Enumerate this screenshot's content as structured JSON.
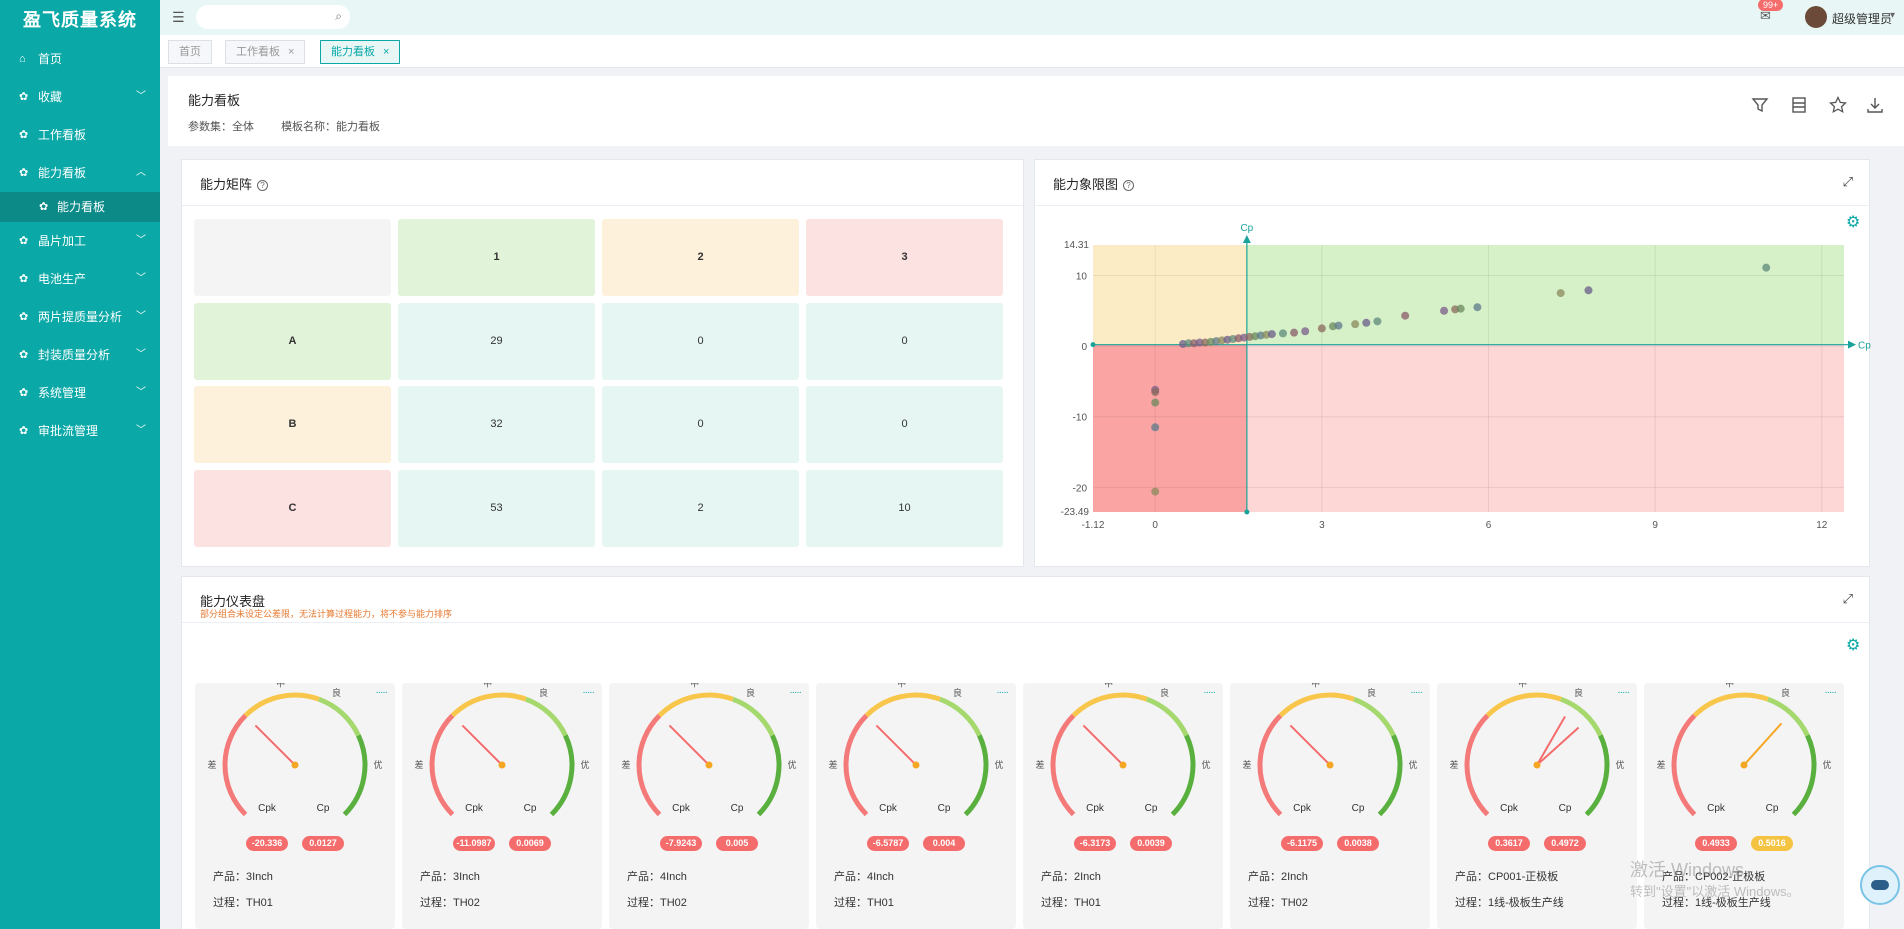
{
  "app": {
    "title": "盈飞质量系统"
  },
  "sidebar": {
    "items": [
      {
        "label": "首页",
        "icon": "home-icon",
        "arrow": ""
      },
      {
        "label": "收藏",
        "icon": "gear-icon",
        "arrow": "down"
      },
      {
        "label": "工作看板",
        "icon": "gear-icon",
        "arrow": ""
      },
      {
        "label": "能力看板",
        "icon": "gear-icon",
        "arrow": "up"
      },
      {
        "label": "能力看板",
        "icon": "gear-icon",
        "arrow": "",
        "sub": true
      },
      {
        "label": "晶片加工",
        "icon": "gear-icon",
        "arrow": "down"
      },
      {
        "label": "电池生产",
        "icon": "gear-icon",
        "arrow": "down"
      },
      {
        "label": "两片提质量分析",
        "icon": "gear-icon",
        "arrow": "down"
      },
      {
        "label": "封装质量分析",
        "icon": "gear-icon",
        "arrow": "down"
      },
      {
        "label": "系统管理",
        "icon": "gear-icon",
        "arrow": "down"
      },
      {
        "label": "审批流管理",
        "icon": "gear-icon",
        "arrow": "down"
      }
    ]
  },
  "header": {
    "search_placeholder": "",
    "badge": "99+",
    "username": "超级管理员"
  },
  "tabs": [
    {
      "label": "首页",
      "closable": false,
      "active": false
    },
    {
      "label": "工作看板",
      "closable": true,
      "active": false
    },
    {
      "label": "能力看板",
      "closable": true,
      "active": true
    }
  ],
  "page": {
    "title": "能力看板",
    "param_label": "参数集：全体",
    "template_label": "模板名称：能力看板"
  },
  "matrix": {
    "title": "能力矩阵",
    "col_headers": [
      "",
      "1",
      "2",
      "3"
    ],
    "rows": [
      {
        "label": "A",
        "values": [
          "29",
          "0",
          "0"
        ]
      },
      {
        "label": "B",
        "values": [
          "32",
          "0",
          "0"
        ]
      },
      {
        "label": "C",
        "values": [
          "53",
          "2",
          "10"
        ]
      }
    ]
  },
  "quadrant": {
    "title": "能力象限图",
    "x_axis_label": "Cpk",
    "y_axis_label": "Cp",
    "x_min_label": "-1.12",
    "y_max_label": "14.31",
    "y_min_label": "-23.49",
    "x_ticks": [
      "0",
      "3",
      "6",
      "9",
      "12"
    ],
    "y_ticks": [
      "10",
      "0",
      "-10",
      "-20"
    ]
  },
  "chart_data": {
    "type": "scatter",
    "title": "能力象限图",
    "xlabel": "Cpk",
    "ylabel": "Cp",
    "xlim": [
      -1.12,
      12.4
    ],
    "ylim": [
      -23.49,
      14.31
    ],
    "grid": true,
    "points": [
      [
        0,
        -6.2
      ],
      [
        0,
        -6.5
      ],
      [
        0,
        -8.0
      ],
      [
        0,
        -11.5
      ],
      [
        0,
        -20.6
      ],
      [
        0.5,
        0.3
      ],
      [
        0.6,
        0.4
      ],
      [
        0.7,
        0.4
      ],
      [
        0.8,
        0.5
      ],
      [
        0.9,
        0.5
      ],
      [
        1.0,
        0.6
      ],
      [
        1.1,
        0.7
      ],
      [
        1.2,
        0.8
      ],
      [
        1.3,
        0.9
      ],
      [
        1.4,
        1.0
      ],
      [
        1.5,
        1.1
      ],
      [
        1.6,
        1.2
      ],
      [
        1.7,
        1.3
      ],
      [
        1.8,
        1.4
      ],
      [
        1.9,
        1.5
      ],
      [
        2.0,
        1.6
      ],
      [
        2.1,
        1.7
      ],
      [
        2.3,
        1.8
      ],
      [
        2.5,
        1.9
      ],
      [
        2.7,
        2.1
      ],
      [
        3.0,
        2.5
      ],
      [
        3.2,
        2.8
      ],
      [
        3.3,
        2.9
      ],
      [
        3.6,
        3.1
      ],
      [
        3.8,
        3.3
      ],
      [
        4.0,
        3.5
      ],
      [
        4.5,
        4.3
      ],
      [
        5.2,
        5.0
      ],
      [
        5.4,
        5.2
      ],
      [
        5.5,
        5.3
      ],
      [
        5.8,
        5.5
      ],
      [
        7.3,
        7.5
      ],
      [
        7.8,
        7.9
      ],
      [
        11.0,
        11.1
      ]
    ],
    "point_colors": [
      "#7a5c8a",
      "#8a6a5c",
      "#6a8a5c",
      "#5c7a8a",
      "#8a8a5c",
      "#6a5c8a",
      "#5c8a7a",
      "#8a5c6a"
    ]
  },
  "gauges_panel": {
    "title": "能力仪表盘",
    "warning": "部分组合未设定公差限，无法计算过程能力，将不参与能力排序"
  },
  "gauges": [
    {
      "cpk": "-20.336",
      "cp": "0.0127",
      "cpk_color": "#f56c6c",
      "cp_color": "#f56c6c",
      "product": "产品：3Inch",
      "process": "过程：TH01",
      "needle_deg": 225,
      "needle_color": "#f56c6c"
    },
    {
      "cpk": "-11.0987",
      "cp": "0.0069",
      "cpk_color": "#f56c6c",
      "cp_color": "#f56c6c",
      "product": "产品：3Inch",
      "process": "过程：TH02",
      "needle_deg": 225,
      "needle_color": "#f56c6c"
    },
    {
      "cpk": "-7.9243",
      "cp": "0.005",
      "cpk_color": "#f56c6c",
      "cp_color": "#f56c6c",
      "product": "产品：4Inch",
      "process": "过程：TH02",
      "needle_deg": 225,
      "needle_color": "#f56c6c"
    },
    {
      "cpk": "-6.5787",
      "cp": "0.004",
      "cpk_color": "#f56c6c",
      "cp_color": "#f56c6c",
      "product": "产品：4Inch",
      "process": "过程：TH01",
      "needle_deg": 225,
      "needle_color": "#f56c6c"
    },
    {
      "cpk": "-6.3173",
      "cp": "0.0039",
      "cpk_color": "#f56c6c",
      "cp_color": "#f56c6c",
      "product": "产品：2Inch",
      "process": "过程：TH01",
      "needle_deg": 225,
      "needle_color": "#f56c6c"
    },
    {
      "cpk": "-6.1175",
      "cp": "0.0038",
      "cpk_color": "#f56c6c",
      "cp_color": "#f56c6c",
      "product": "产品：2Inch",
      "process": "过程：TH02",
      "needle_deg": 225,
      "needle_color": "#f56c6c"
    },
    {
      "cpk": "0.3617",
      "cp": "0.4972",
      "cpk_color": "#f56c6c",
      "cp_color": "#f56c6c",
      "product": "产品：CP001-正极板",
      "process": "过程：1线-极板生产线",
      "needle_deg": 300,
      "needle_color": "#f56c6c",
      "needle2_deg": 318
    },
    {
      "cpk": "0.4933",
      "cp": "0.5016",
      "cpk_color": "#f56c6c",
      "cp_color": "#f5c342",
      "product": "产品：CP002-正极板",
      "process": "过程：1线-极板生产线",
      "needle_deg": 312,
      "needle_color": "#f5a623"
    }
  ],
  "gauge_labels": {
    "low": "差",
    "mid": "中",
    "good": "良",
    "excellent": "优",
    "cpk": "Cpk",
    "cp": "Cp"
  },
  "watermark": {
    "line1": "激活 Windows",
    "line2": "转到\"设置\"以激活 Windows。"
  }
}
